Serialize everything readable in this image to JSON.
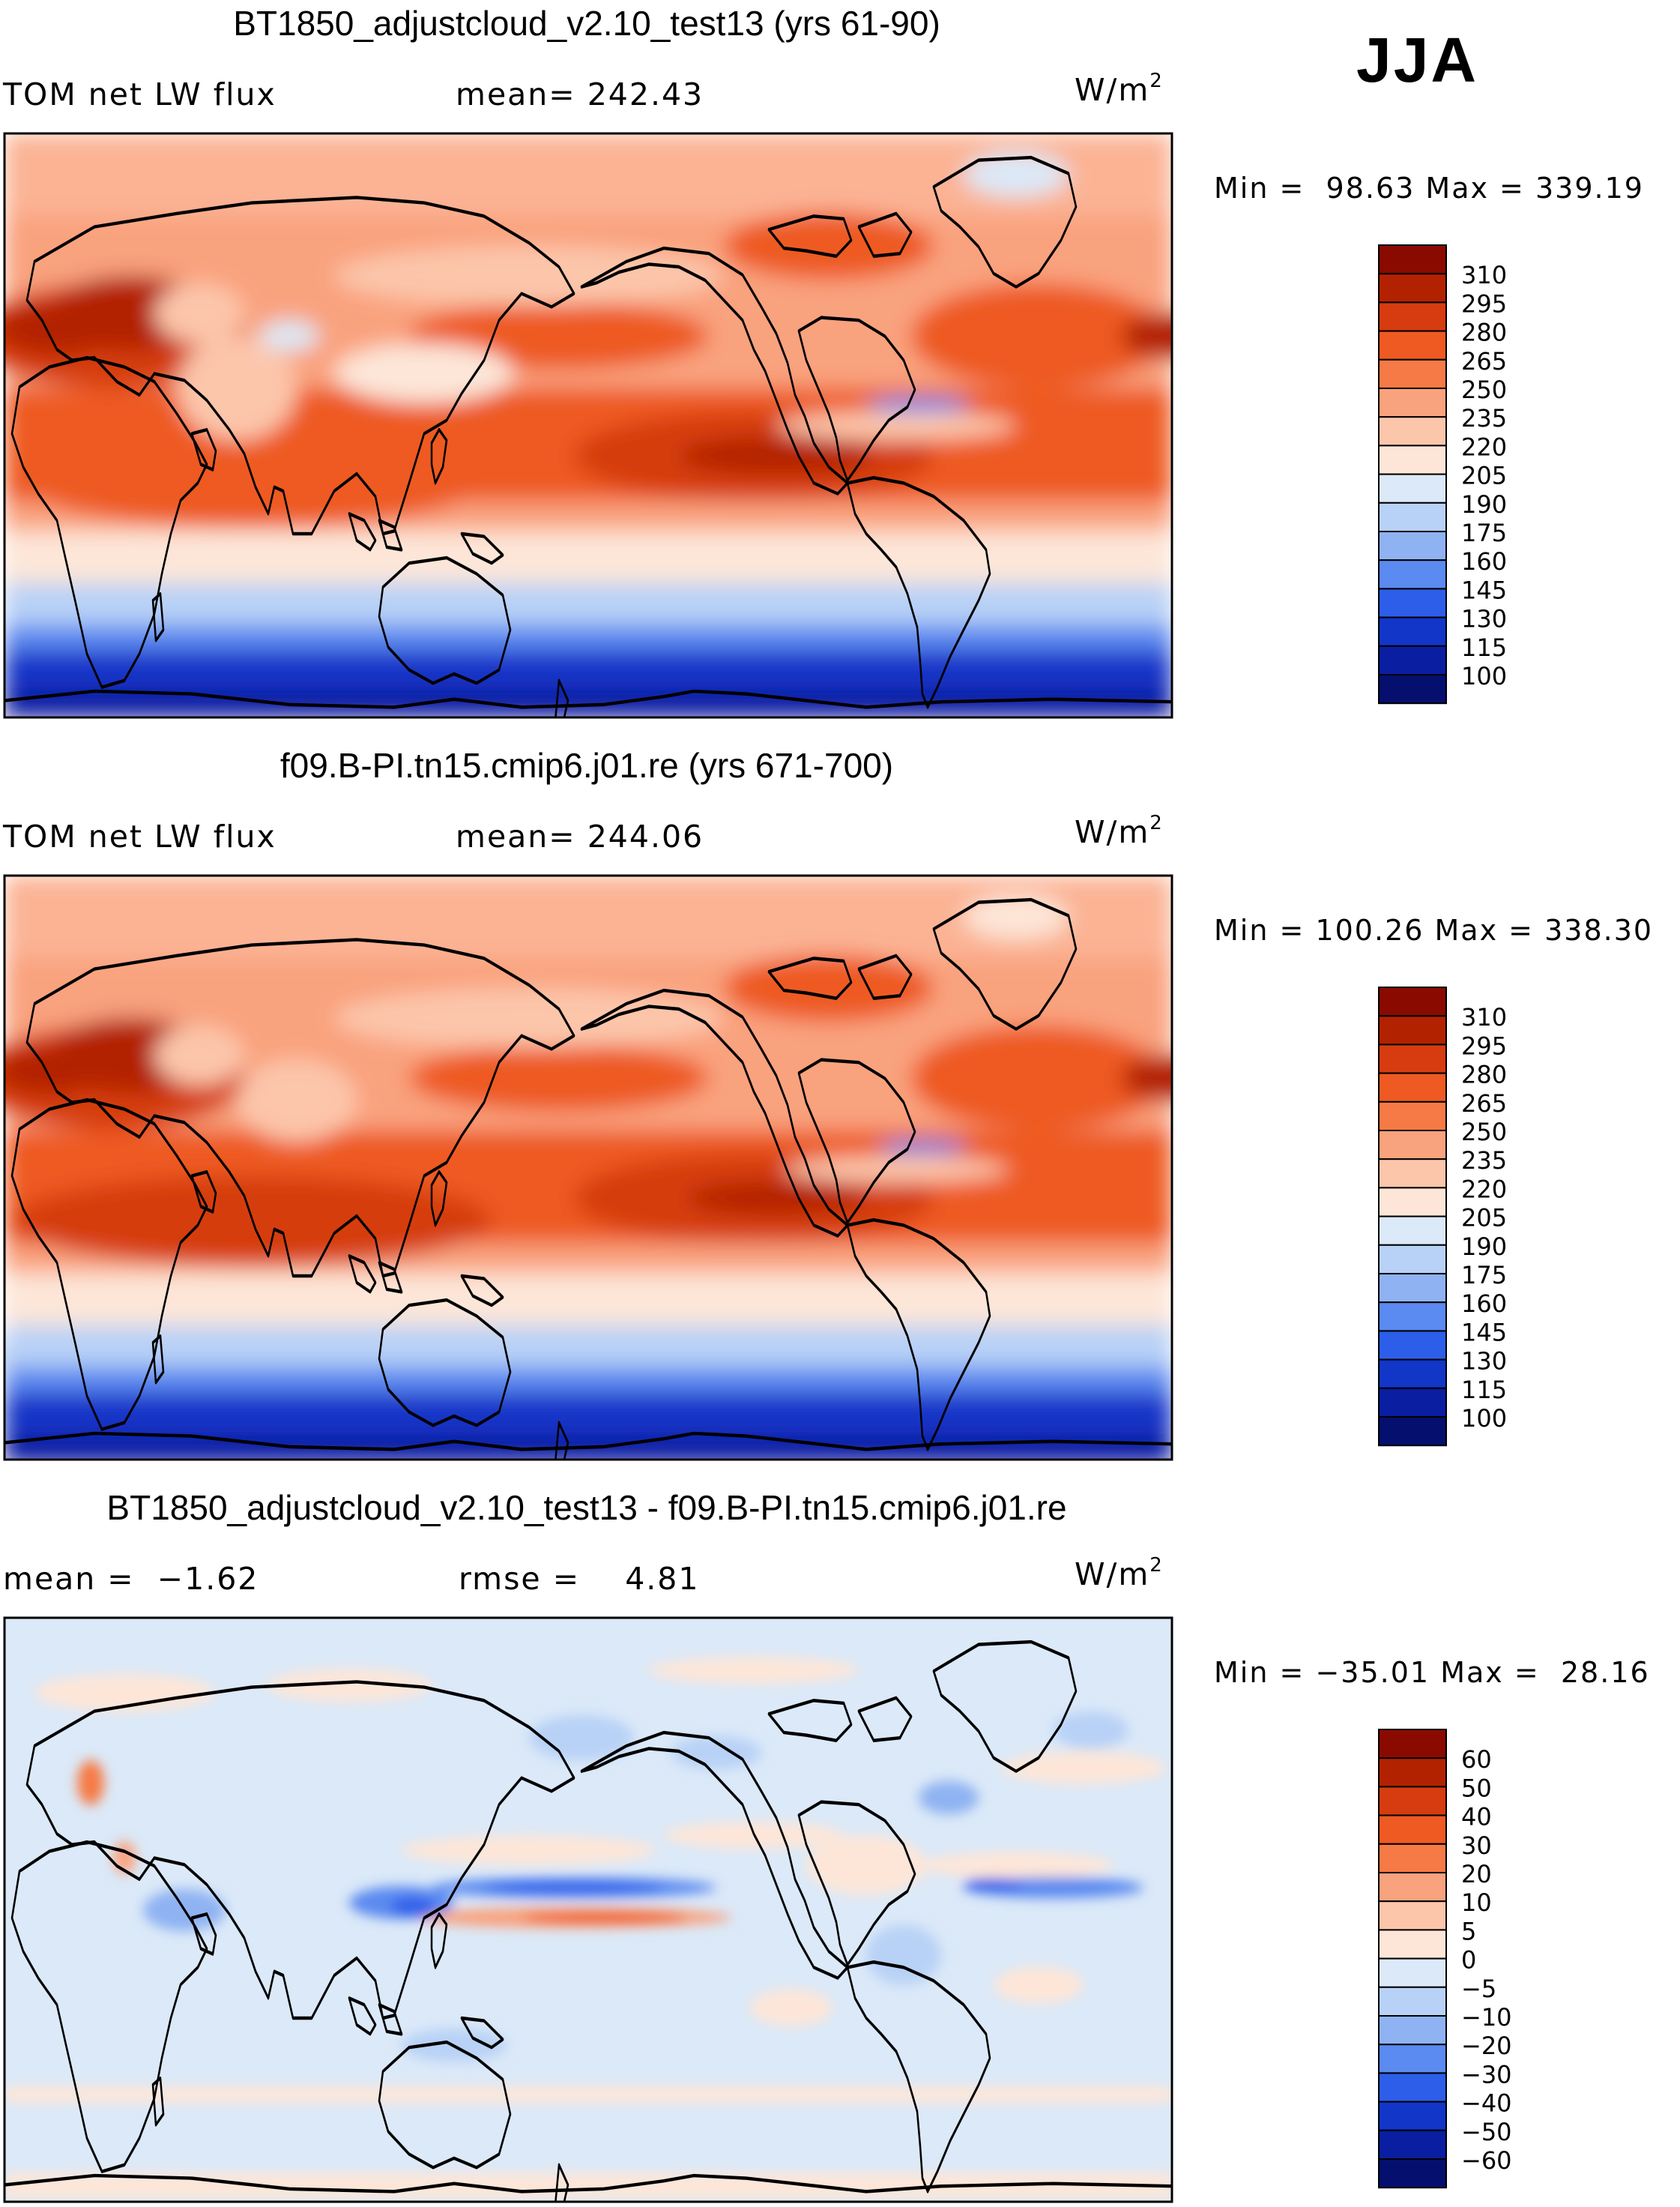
{
  "season": "JJA",
  "chart_data": [
    {
      "type": "heatmap",
      "title": "BT1850_adjustcloud_v2.10_test13 (yrs 61-90)",
      "variable": "TOM net LW flux",
      "stat_label": "mean=",
      "stat_value": "242.43",
      "units": "W/m",
      "units_exp": "2",
      "min_label": "Min =",
      "min_value": "98.63",
      "max_label": "Max =",
      "max_value": "339.19",
      "colorbar": {
        "levels": [
          "310",
          "295",
          "280",
          "265",
          "250",
          "235",
          "220",
          "205",
          "190",
          "175",
          "160",
          "145",
          "130",
          "115",
          "100"
        ],
        "colors": [
          "#8a0a00",
          "#b32200",
          "#d63c10",
          "#ee5a22",
          "#f67a45",
          "#f9a27e",
          "#fcc6ab",
          "#fde6d8",
          "#dbe9f8",
          "#b8d1f6",
          "#8fb2f2",
          "#5b8af0",
          "#2d5eea",
          "#1236c8",
          "#0a1ea2",
          "#050f6e"
        ]
      }
    },
    {
      "type": "heatmap",
      "title": "f09.B-PI.tn15.cmip6.j01.re (yrs 671-700)",
      "variable": "TOM net LW flux",
      "stat_label": "mean=",
      "stat_value": "244.06",
      "units": "W/m",
      "units_exp": "2",
      "min_label": "Min =",
      "min_value": "100.26",
      "max_label": "Max =",
      "max_value": "338.30",
      "colorbar": {
        "levels": [
          "310",
          "295",
          "280",
          "265",
          "250",
          "235",
          "220",
          "205",
          "190",
          "175",
          "160",
          "145",
          "130",
          "115",
          "100"
        ],
        "colors": [
          "#8a0a00",
          "#b32200",
          "#d63c10",
          "#ee5a22",
          "#f67a45",
          "#f9a27e",
          "#fcc6ab",
          "#fde6d8",
          "#dbe9f8",
          "#b8d1f6",
          "#8fb2f2",
          "#5b8af0",
          "#2d5eea",
          "#1236c8",
          "#0a1ea2",
          "#050f6e"
        ]
      }
    },
    {
      "type": "heatmap",
      "title": "BT1850_adjustcloud_v2.10_test13 - f09.B-PI.tn15.cmip6.j01.re",
      "stat_label": "mean =",
      "stat_value": "−1.62",
      "stat2_label": "rmse =",
      "stat2_value": "4.81",
      "units": "W/m",
      "units_exp": "2",
      "min_label": "Min =",
      "min_value": "−35.01",
      "max_label": "Max =",
      "max_value": "28.16",
      "colorbar": {
        "levels": [
          "60",
          "50",
          "40",
          "30",
          "20",
          "10",
          "5",
          "0",
          "−5",
          "−10",
          "−20",
          "−30",
          "−40",
          "−50",
          "−60"
        ],
        "colors": [
          "#8a0a00",
          "#b32200",
          "#d63c10",
          "#ee5a22",
          "#f67a45",
          "#f9a27e",
          "#fcc6ab",
          "#fde6d8",
          "#dbe9f8",
          "#b8d1f6",
          "#8fb2f2",
          "#5b8af0",
          "#2d5eea",
          "#1236c8",
          "#0a1ea2",
          "#050f6e"
        ]
      }
    }
  ]
}
